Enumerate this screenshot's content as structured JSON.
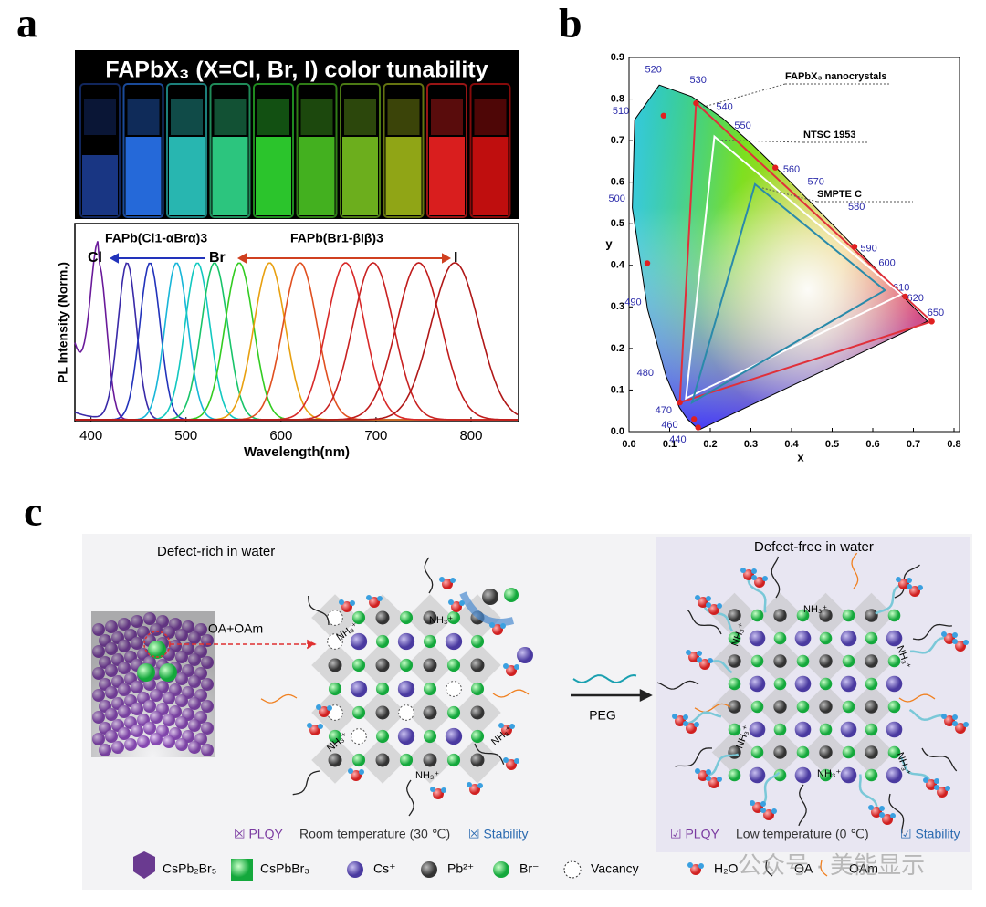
{
  "panel_a": {
    "label": "a",
    "photo_title": "FAPbX₃ (X=Cl, Br, I) color tunability",
    "vial_colors": [
      "#1d3f9a",
      "#2b7bff",
      "#2fd6cf",
      "#34e894",
      "#33e634",
      "#4fcf24",
      "#7fcc22",
      "#a9c21a",
      "#ff2323",
      "#e01010"
    ],
    "series_label_1": "FAPb(Cl1-αBrα)3",
    "series_label_2": "FAPb(Br1-βIβ)3",
    "end_labels": [
      "Cl",
      "Br",
      "I"
    ],
    "y_label": "PL Intensity (Norm.)",
    "x_label": "Wavelength(nm)",
    "xlim": [
      383,
      850
    ],
    "xticks": [
      400,
      500,
      600,
      700,
      800
    ],
    "peaks": [
      408,
      438,
      462,
      490,
      512,
      530,
      556,
      588,
      620,
      668,
      697,
      745,
      783
    ],
    "colors": [
      "#6a1a9a",
      "#3a2aa8",
      "#2233bb",
      "#18b6d8",
      "#12c8c0",
      "#19c46a",
      "#33cc22",
      "#e8a010",
      "#e05020",
      "#d82a2a",
      "#c82222",
      "#c01c1c",
      "#b01818"
    ]
  },
  "panel_b": {
    "label": "b",
    "x_label": "x",
    "y_label": "y",
    "xlim": [
      0,
      0.8
    ],
    "ylim": [
      0,
      0.9
    ],
    "xticks": [
      {
        "value": 0,
        "label": "0.0"
      },
      0.1,
      0.2,
      0.3,
      0.4,
      0.5,
      0.6,
      0.7,
      0.8
    ],
    "yticks": [
      {
        "value": 0,
        "label": "0.0"
      },
      0.1,
      0.2,
      0.3,
      0.4,
      0.5,
      0.6,
      0.7,
      0.8,
      0.9
    ],
    "wavelengths": [
      440,
      460,
      470,
      480,
      490,
      500,
      510,
      520,
      530,
      540,
      550,
      560,
      570,
      580,
      590,
      600,
      610,
      620,
      650
    ],
    "triangles": [
      {
        "name": "FAPbX₃ nanocrystals",
        "color": "#e0303a",
        "x": [
          0.165,
          0.745,
          0.125
        ],
        "y": [
          0.79,
          0.265,
          0.07
        ]
      },
      {
        "name": "NTSC 1953",
        "color": "#ffffff",
        "x": [
          0.21,
          0.67,
          0.14
        ],
        "y": [
          0.71,
          0.33,
          0.08
        ]
      },
      {
        "name": "SMPTE C",
        "color": "#2a8aaa",
        "x": [
          0.31,
          0.63,
          0.155
        ],
        "y": [
          0.595,
          0.34,
          0.07
        ]
      }
    ],
    "dots": {
      "x": [
        0.085,
        0.045,
        0.36,
        0.555,
        0.68,
        0.745,
        0.16,
        0.17
      ],
      "y": [
        0.76,
        0.405,
        0.635,
        0.445,
        0.325,
        0.265,
        0.03,
        0.01
      ]
    }
  },
  "panel_c": {
    "label": "c",
    "left_title": "Defect-rich in water",
    "right_title": "Defect-free in water",
    "arrow_1": "OA+OAm",
    "arrow_2": "PEG",
    "ligand": "NH₃⁺",
    "left_status": [
      "☒ PLQY",
      "Room temperature (30 ℃)",
      "☒ Stability"
    ],
    "right_status": [
      "☑ PLQY",
      "Low temperature (0 ℃)",
      "☑ Stability"
    ],
    "legend": [
      "CsPb₂Br₅",
      "CsPbBr₃",
      "Cs⁺",
      "Pb²⁺",
      "Br⁻",
      "Vacancy",
      "H₂O",
      "OA",
      "OAm"
    ],
    "watermark": "公众号 · 美能显示"
  }
}
